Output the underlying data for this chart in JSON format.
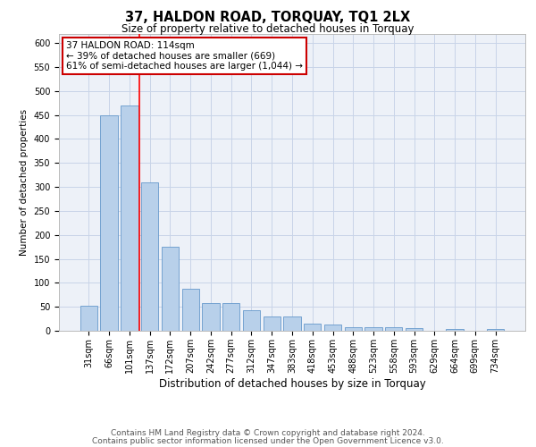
{
  "title": "37, HALDON ROAD, TORQUAY, TQ1 2LX",
  "subtitle": "Size of property relative to detached houses in Torquay",
  "xlabel": "Distribution of detached houses by size in Torquay",
  "ylabel": "Number of detached properties",
  "categories": [
    "31sqm",
    "66sqm",
    "101sqm",
    "137sqm",
    "172sqm",
    "207sqm",
    "242sqm",
    "277sqm",
    "312sqm",
    "347sqm",
    "383sqm",
    "418sqm",
    "453sqm",
    "488sqm",
    "523sqm",
    "558sqm",
    "593sqm",
    "629sqm",
    "664sqm",
    "699sqm",
    "734sqm"
  ],
  "values": [
    53,
    450,
    470,
    310,
    175,
    88,
    57,
    57,
    42,
    30,
    30,
    15,
    13,
    8,
    8,
    7,
    5,
    0,
    3,
    0,
    3
  ],
  "bar_color": "#b8d0ea",
  "bar_edge_color": "#6699cc",
  "bar_edge_width": 0.6,
  "grid_color": "#c8d4e8",
  "background_color": "#ffffff",
  "plot_bg_color": "#edf1f8",
  "red_line_x": 2.5,
  "annotation_text": "37 HALDON ROAD: 114sqm\n← 39% of detached houses are smaller (669)\n61% of semi-detached houses are larger (1,044) →",
  "annotation_box_color": "#ffffff",
  "annotation_border_color": "#cc0000",
  "ylim": [
    0,
    620
  ],
  "yticks": [
    0,
    50,
    100,
    150,
    200,
    250,
    300,
    350,
    400,
    450,
    500,
    550,
    600
  ],
  "footnote1": "Contains HM Land Registry data © Crown copyright and database right 2024.",
  "footnote2": "Contains public sector information licensed under the Open Government Licence v3.0.",
  "title_fontsize": 10.5,
  "subtitle_fontsize": 8.5,
  "xlabel_fontsize": 8.5,
  "ylabel_fontsize": 7.5,
  "tick_fontsize": 7,
  "annotation_fontsize": 7.5,
  "footnote_fontsize": 6.5
}
